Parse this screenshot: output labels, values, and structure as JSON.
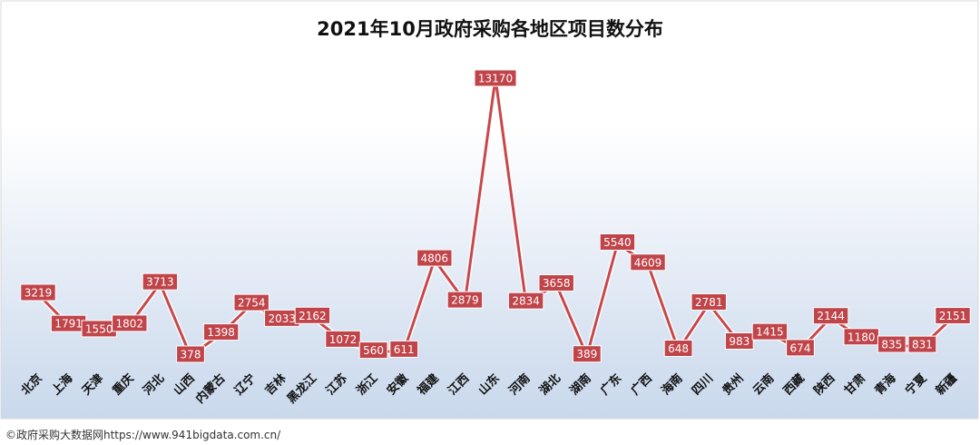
{
  "source_credit": "©政府采购大数据网https://www.941bigdata.com.cn/",
  "colors": {
    "line": "#c8474a",
    "label_fill": "#c0454a",
    "label_stroke": "#ffffff",
    "background_top": "#ffffff",
    "background_bottom": "#c9d8ec"
  },
  "chart_data": {
    "type": "line",
    "title": "2021年10月政府采购各地区项目数分布",
    "xlabel": "",
    "ylabel": "",
    "ylim": [
      0,
      14000
    ],
    "grid": false,
    "legend": "none",
    "categories": [
      "北京",
      "上海",
      "天津",
      "重庆",
      "河北",
      "山西",
      "内蒙古",
      "辽宁",
      "吉林",
      "黑龙江",
      "江苏",
      "浙江",
      "安徽",
      "福建",
      "江西",
      "山东",
      "河南",
      "湖北",
      "湖南",
      "广东",
      "广西",
      "海南",
      "四川",
      "贵州",
      "云南",
      "西藏",
      "陕西",
      "甘肃",
      "青海",
      "宁夏",
      "新疆"
    ],
    "series": [
      {
        "values": [
          3219,
          1791,
          1550,
          1802,
          3713,
          378,
          1398,
          2754,
          2033,
          2162,
          1072,
          560,
          611,
          4806,
          2879,
          13170,
          2834,
          3658,
          389,
          5540,
          4609,
          648,
          2781,
          983,
          1415,
          674,
          2144,
          1180,
          835,
          831,
          2151
        ]
      }
    ]
  }
}
